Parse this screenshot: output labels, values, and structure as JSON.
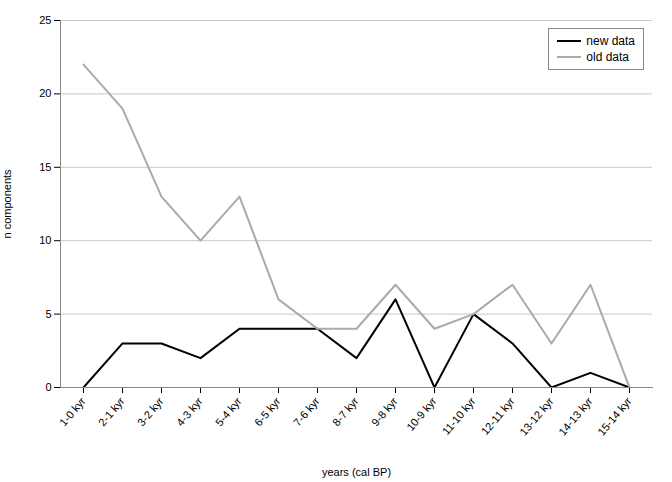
{
  "chart_data": {
    "type": "line",
    "categories": [
      "1-0 kyr",
      "2-1 kyr",
      "3-2 kyr",
      "4-3 kyr",
      "5-4 kyr",
      "6-5 kyr",
      "7-6 kyr",
      "8-7 kyr",
      "9-8 kyr",
      "10-9 kyr",
      "11-10 kyr",
      "12-11 kyr",
      "13-12 kyr",
      "14-13 kyr",
      "15-14 kyr"
    ],
    "series": [
      {
        "name": "new data",
        "color": "#000000",
        "values": [
          0,
          3,
          3,
          2,
          4,
          4,
          4,
          2,
          6,
          0,
          5,
          3,
          0,
          1,
          0
        ]
      },
      {
        "name": "old data",
        "color": "#aaaaaa",
        "values": [
          22,
          19,
          13,
          10,
          13,
          6,
          4,
          4,
          7,
          4,
          5,
          7,
          3,
          7,
          0
        ]
      }
    ],
    "xlabel": "years (cal BP)",
    "ylabel": "n components",
    "ylim": [
      0,
      25
    ],
    "yticks": [
      0,
      5,
      10,
      15,
      20,
      25
    ],
    "grid": true,
    "legend": "upper right"
  }
}
